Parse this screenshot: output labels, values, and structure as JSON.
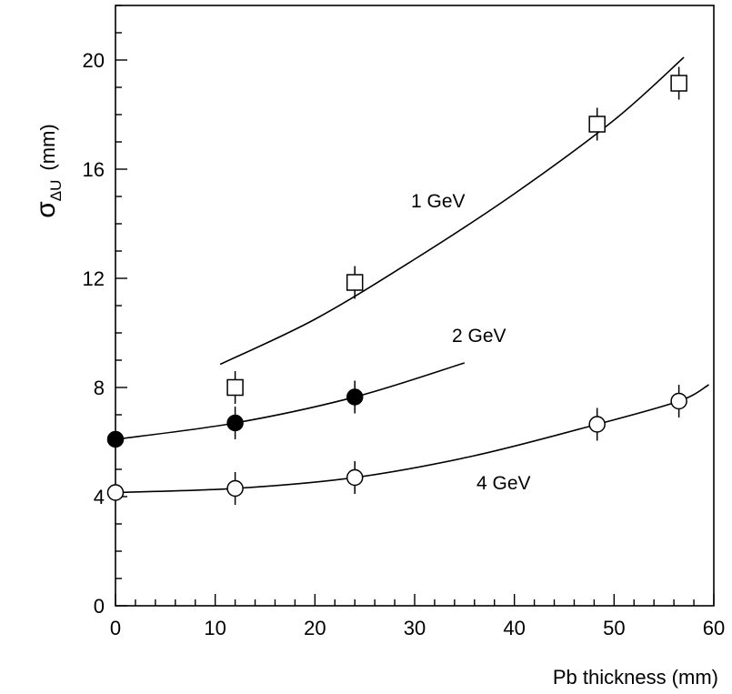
{
  "chart_data": {
    "type": "scatter",
    "xlabel": "Pb thickness  (mm)",
    "ylabel": {
      "sym": "σ",
      "sub": "ΔU",
      "unit": "(mm)"
    },
    "xlim": [
      0,
      60
    ],
    "ylim": [
      0,
      22
    ],
    "xticks": [
      0,
      10,
      20,
      30,
      40,
      50,
      60
    ],
    "yticks": [
      0,
      4,
      8,
      12,
      16,
      20
    ],
    "xticks_minor_step": 2,
    "yticks_minor_step": 1,
    "grid": false,
    "legend": "none",
    "series": [
      {
        "name": "1 GeV",
        "marker": "open-square",
        "x": [
          12,
          24,
          48.3,
          56.5
        ],
        "y": [
          8.0,
          11.85,
          17.65,
          19.15
        ],
        "yerr": [
          0.6,
          0.6,
          0.6,
          0.6
        ],
        "fit": {
          "x": [
            10.5,
            20,
            30,
            40,
            50,
            57
          ],
          "y": [
            8.85,
            10.5,
            12.7,
            15.1,
            17.8,
            20.1
          ]
        }
      },
      {
        "name": "2 GeV",
        "marker": "filled-circle",
        "x": [
          0,
          12,
          24
        ],
        "y": [
          6.1,
          6.7,
          7.65
        ],
        "yerr": [
          0,
          0.6,
          0.6
        ],
        "fit": {
          "x": [
            0,
            12,
            24,
            35
          ],
          "y": [
            6.1,
            6.7,
            7.65,
            8.9
          ]
        }
      },
      {
        "name": "4 GeV",
        "marker": "open-circle",
        "x": [
          0,
          12,
          24,
          48.3,
          56.5
        ],
        "y": [
          4.15,
          4.3,
          4.7,
          6.65,
          7.5
        ],
        "yerr": [
          0,
          0.6,
          0.6,
          0.6,
          0.6
        ],
        "fit": {
          "x": [
            0,
            12,
            24,
            36,
            48.3,
            56.5,
            59.5
          ],
          "y": [
            4.15,
            4.3,
            4.7,
            5.5,
            6.65,
            7.5,
            8.1
          ]
        }
      }
    ]
  }
}
